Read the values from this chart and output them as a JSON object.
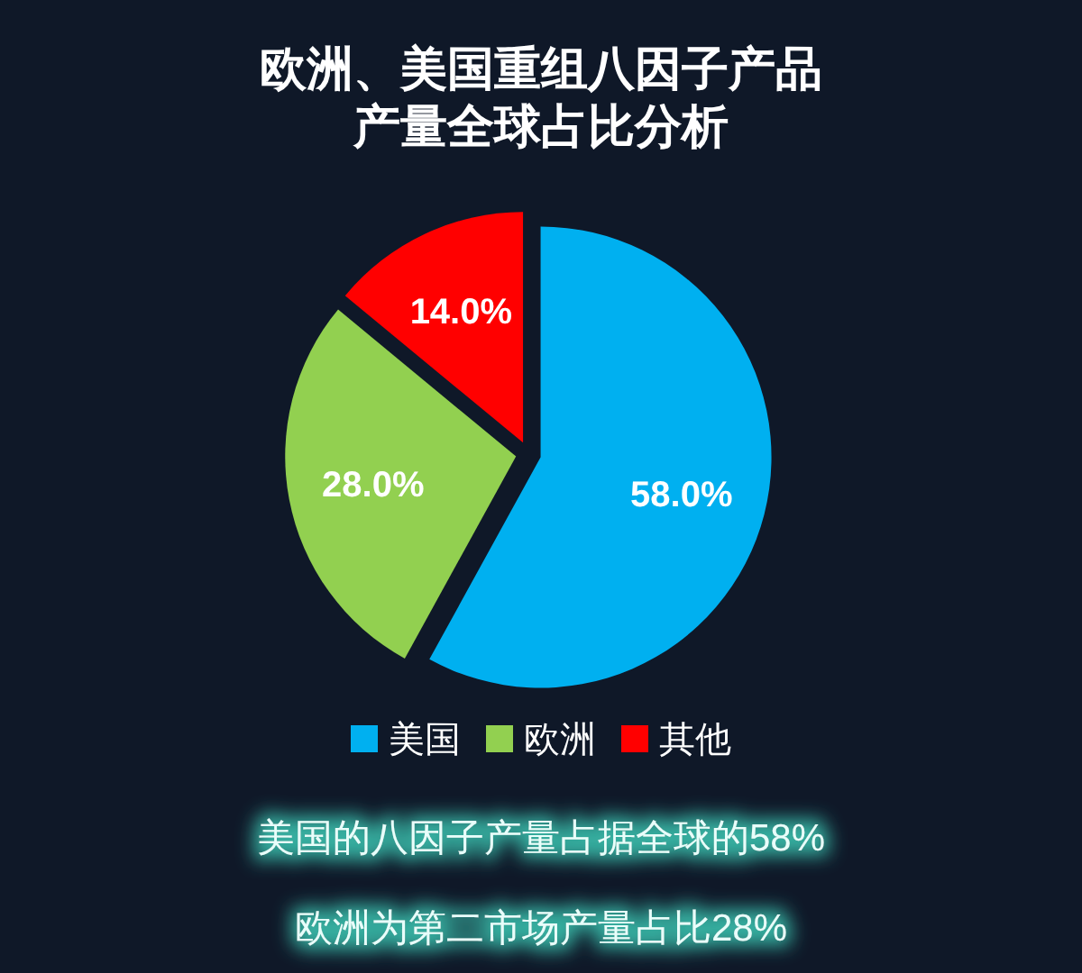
{
  "chart_data": {
    "type": "pie",
    "title": "欧洲、美国重组八因子产品产量全球占比分析",
    "categories": [
      "美国",
      "欧洲",
      "其他"
    ],
    "values": [
      58,
      28,
      14
    ],
    "colors": [
      "#00b0f0",
      "#92d050",
      "#ff0000"
    ],
    "value_labels": [
      "58.0%",
      "28.0%",
      "14.0%"
    ],
    "legend": "bottom",
    "annotations": [
      "美国的八因子产量占据全球的58%",
      "欧洲为第二市场产量占比28%"
    ]
  }
}
